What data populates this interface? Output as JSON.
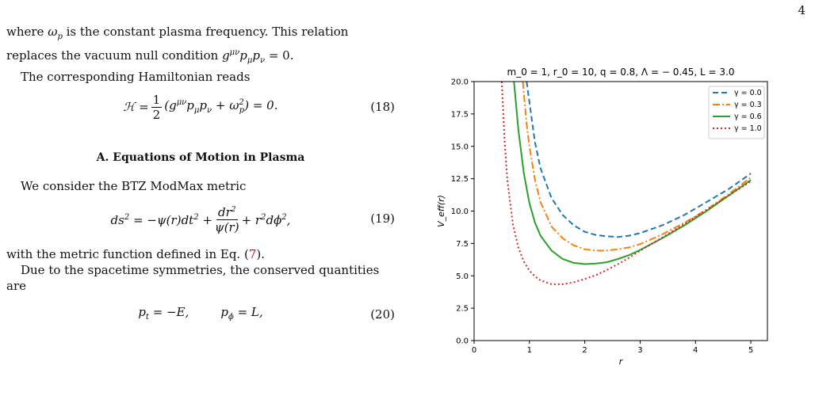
{
  "page_number": "4",
  "text": {
    "p1": "where ω_p is the constant plasma frequency. This relation replaces the vacuum null condition g^{μν}p_μp_ν = 0.",
    "p2": "The corresponding Hamiltonian reads",
    "eq18": "ℋ = 1/2 (g^{μν}p_μp_ν + ω_p²) = 0.",
    "eq18_num": "(18)",
    "section": "A.   Equations of Motion in Plasma",
    "p3": "We consider the BTZ ModMax metric",
    "eq19_num": "(19)",
    "p4_a": "with the metric function defined in Eq. (",
    "p4_ref": "7",
    "p4_b": ").",
    "p5": "Due to the spacetime symmetries, the conserved quantities are",
    "eq20_a": "p_t = −E,",
    "eq20_b": "p_ϕ = L,",
    "eq20_num": "(20)"
  },
  "chart_data": {
    "type": "line",
    "title": "m_0 = 1, r_0 = 10, q = 0.8, Λ = − 0.45, L = 3.0",
    "xlabel": "r",
    "ylabel": "V_eff(r)",
    "xlim": [
      0,
      5.3
    ],
    "ylim": [
      0,
      20
    ],
    "xticks": [
      0,
      1,
      2,
      3,
      4,
      5
    ],
    "yticks": [
      0.0,
      2.5,
      5.0,
      7.5,
      10.0,
      12.5,
      15.0,
      17.5,
      20.0
    ],
    "ytick_labels": [
      "0.0",
      "2.5",
      "5.0",
      "7.5",
      "10.0",
      "12.5",
      "15.0",
      "17.5",
      "20.0"
    ],
    "legend_position": "top-right",
    "grid": false,
    "series": [
      {
        "name": "γ = 0.0",
        "color": "#1f77b4",
        "dash": "dashed",
        "x": [
          0.95,
          1.0,
          1.1,
          1.2,
          1.4,
          1.6,
          1.8,
          2.0,
          2.2,
          2.4,
          2.6,
          2.8,
          3.0,
          3.4,
          3.8,
          4.2,
          4.6,
          5.0
        ],
        "y": [
          20.0,
          18.4,
          15.3,
          13.3,
          11.0,
          9.7,
          8.9,
          8.4,
          8.15,
          8.05,
          8.0,
          8.1,
          8.3,
          8.9,
          9.7,
          10.7,
          11.7,
          12.9
        ]
      },
      {
        "name": "γ = 0.3",
        "color": "#ff7f0e",
        "dash": "dashdot",
        "x": [
          0.88,
          0.95,
          1.0,
          1.1,
          1.2,
          1.4,
          1.6,
          1.8,
          2.0,
          2.2,
          2.4,
          2.6,
          2.8,
          3.0,
          3.4,
          3.8,
          4.2,
          4.6,
          5.0
        ],
        "y": [
          20.0,
          16.7,
          15.0,
          12.4,
          10.7,
          8.8,
          7.9,
          7.35,
          7.05,
          6.95,
          6.95,
          7.05,
          7.2,
          7.45,
          8.2,
          9.1,
          10.1,
          11.3,
          12.6
        ]
      },
      {
        "name": "γ = 0.6",
        "color": "#2ca02c",
        "dash": "solid",
        "x": [
          0.72,
          0.8,
          0.9,
          1.0,
          1.1,
          1.2,
          1.4,
          1.6,
          1.8,
          2.0,
          2.2,
          2.4,
          2.6,
          2.8,
          3.0,
          3.4,
          3.8,
          4.2,
          4.6,
          5.0
        ],
        "y": [
          20.0,
          16.3,
          12.9,
          10.6,
          9.1,
          8.1,
          6.95,
          6.3,
          6.0,
          5.9,
          5.95,
          6.05,
          6.3,
          6.6,
          7.0,
          7.9,
          8.9,
          10.0,
          11.2,
          12.4
        ]
      },
      {
        "name": "γ = 1.0",
        "color": "#d62728",
        "dash": "dotted",
        "x": [
          0.5,
          0.55,
          0.6,
          0.7,
          0.8,
          0.9,
          1.0,
          1.1,
          1.2,
          1.4,
          1.6,
          1.8,
          2.0,
          2.2,
          2.4,
          2.6,
          2.8,
          3.0,
          3.4,
          3.8,
          4.2,
          4.6,
          5.0
        ],
        "y": [
          20.0,
          15.5,
          12.4,
          9.0,
          7.2,
          6.1,
          5.4,
          4.95,
          4.65,
          4.35,
          4.35,
          4.5,
          4.75,
          5.05,
          5.45,
          5.9,
          6.4,
          6.95,
          7.95,
          9.0,
          10.1,
          11.2,
          12.3
        ]
      }
    ]
  }
}
